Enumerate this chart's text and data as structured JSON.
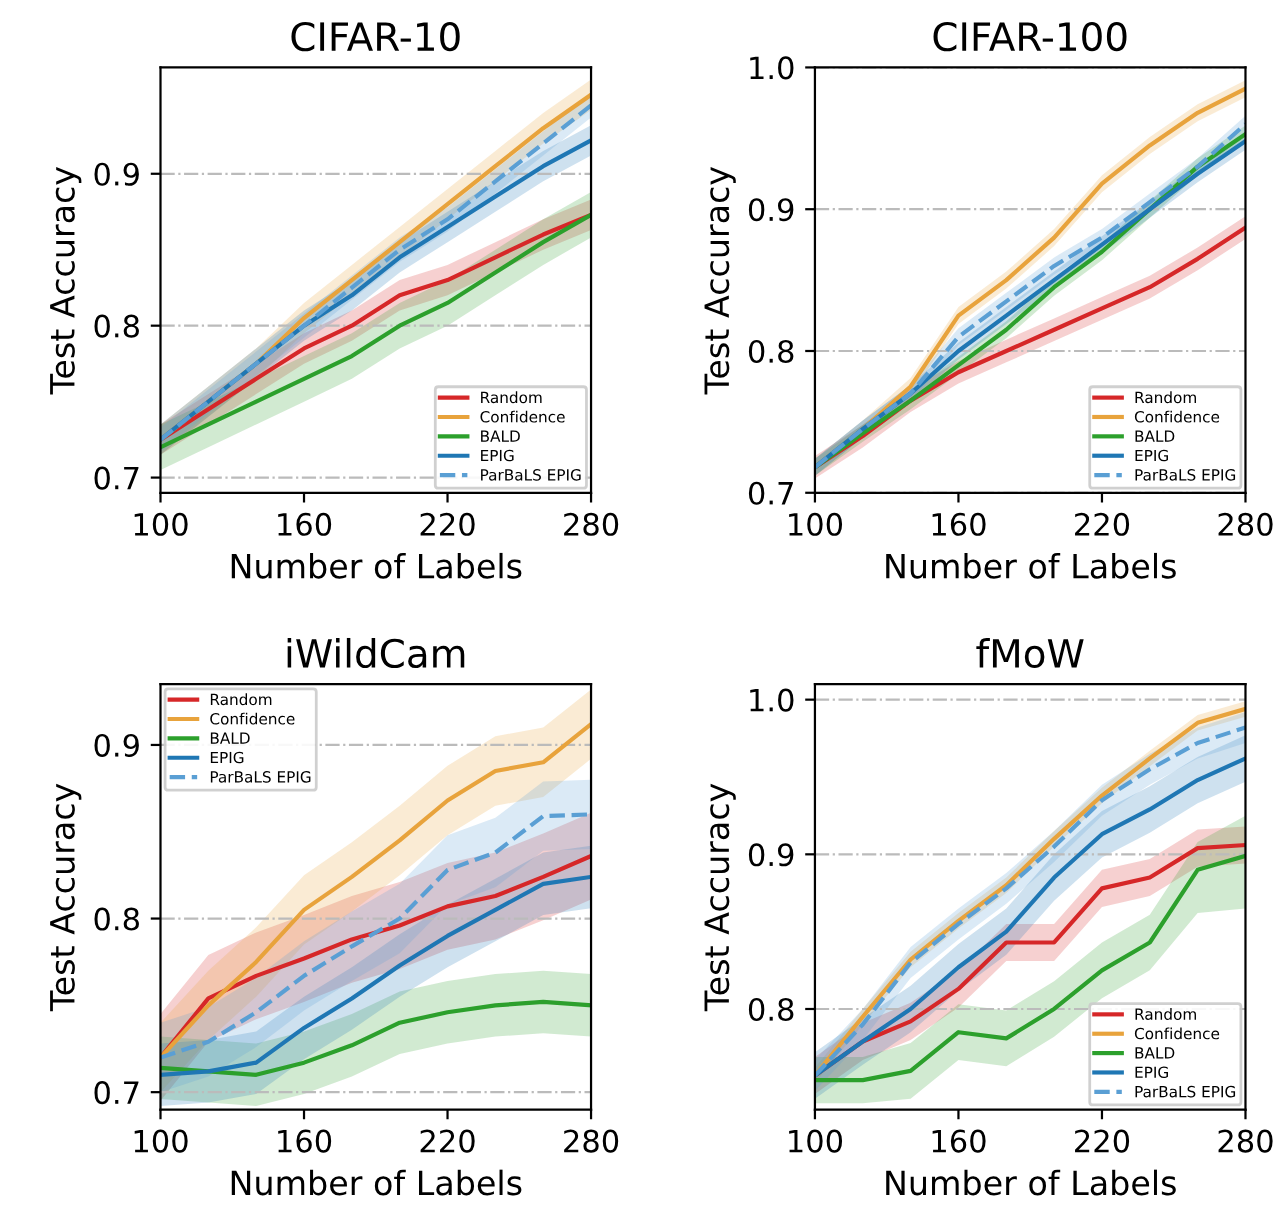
{
  "chart_data": [
    {
      "type": "line",
      "title": "CIFAR-10",
      "xlabel": "Number of Labels",
      "ylabel": "Test Accuracy",
      "x": [
        100,
        120,
        140,
        160,
        180,
        200,
        220,
        240,
        260,
        280
      ],
      "xlim": [
        100,
        280
      ],
      "xticks": [
        100,
        160,
        220,
        280
      ],
      "ylim": [
        0.69,
        0.97
      ],
      "yticks": [
        0.7,
        0.8,
        0.9
      ],
      "grid": "y",
      "legend": "lower right",
      "series": [
        {
          "name": "Random",
          "color": "#d62728",
          "line_style": "solid",
          "values": [
            0.725,
            0.745,
            0.765,
            0.785,
            0.8,
            0.82,
            0.83,
            0.845,
            0.86,
            0.873
          ],
          "lower": [
            0.715,
            0.735,
            0.755,
            0.775,
            0.79,
            0.81,
            0.82,
            0.835,
            0.85,
            0.863
          ],
          "upper": [
            0.735,
            0.755,
            0.775,
            0.795,
            0.81,
            0.83,
            0.84,
            0.855,
            0.87,
            0.883
          ]
        },
        {
          "name": "Confidence",
          "color": "#e8a33c",
          "line_style": "solid",
          "values": [
            0.725,
            0.75,
            0.775,
            0.805,
            0.83,
            0.855,
            0.88,
            0.905,
            0.93,
            0.952
          ],
          "lower": [
            0.715,
            0.74,
            0.765,
            0.795,
            0.82,
            0.845,
            0.87,
            0.895,
            0.92,
            0.942
          ],
          "upper": [
            0.735,
            0.76,
            0.785,
            0.815,
            0.84,
            0.865,
            0.89,
            0.915,
            0.94,
            0.962
          ]
        },
        {
          "name": "BALD",
          "color": "#2ca02c",
          "line_style": "solid",
          "values": [
            0.72,
            0.735,
            0.75,
            0.765,
            0.78,
            0.8,
            0.815,
            0.835,
            0.855,
            0.873
          ],
          "lower": [
            0.705,
            0.72,
            0.735,
            0.75,
            0.765,
            0.785,
            0.8,
            0.82,
            0.84,
            0.858
          ],
          "upper": [
            0.735,
            0.75,
            0.765,
            0.78,
            0.795,
            0.815,
            0.83,
            0.85,
            0.87,
            0.888
          ]
        },
        {
          "name": "EPIG",
          "color": "#1f77b4",
          "line_style": "solid",
          "values": [
            0.725,
            0.75,
            0.775,
            0.8,
            0.82,
            0.845,
            0.865,
            0.885,
            0.905,
            0.922
          ],
          "lower": [
            0.715,
            0.74,
            0.765,
            0.79,
            0.81,
            0.835,
            0.855,
            0.875,
            0.895,
            0.912
          ],
          "upper": [
            0.735,
            0.76,
            0.785,
            0.81,
            0.83,
            0.855,
            0.875,
            0.895,
            0.915,
            0.932
          ]
        },
        {
          "name": "ParBaLS EPIG",
          "color": "#5a9fd4",
          "line_style": "dashed",
          "values": [
            0.725,
            0.75,
            0.775,
            0.8,
            0.825,
            0.85,
            0.87,
            0.895,
            0.92,
            0.945
          ],
          "lower": [
            0.717,
            0.742,
            0.767,
            0.792,
            0.817,
            0.842,
            0.862,
            0.887,
            0.912,
            0.937
          ],
          "upper": [
            0.733,
            0.758,
            0.783,
            0.808,
            0.833,
            0.858,
            0.878,
            0.903,
            0.928,
            0.953
          ]
        }
      ]
    },
    {
      "type": "line",
      "title": "CIFAR-100",
      "xlabel": "Number of Labels",
      "ylabel": "Test Accuracy",
      "x": [
        100,
        120,
        140,
        160,
        180,
        200,
        220,
        240,
        260,
        280
      ],
      "xlim": [
        100,
        280
      ],
      "xticks": [
        100,
        160,
        220,
        280
      ],
      "ylim": [
        0.7,
        1.0
      ],
      "yticks": [
        0.7,
        0.8,
        0.9,
        {
          "value": 1.0,
          "label": "1.0"
        }
      ],
      "grid": "y",
      "legend": "lower right",
      "series": [
        {
          "name": "Random",
          "color": "#d62728",
          "line_style": "solid",
          "values": [
            0.718,
            0.74,
            0.765,
            0.785,
            0.8,
            0.815,
            0.83,
            0.845,
            0.865,
            0.887
          ],
          "lower": [
            0.71,
            0.732,
            0.757,
            0.777,
            0.792,
            0.807,
            0.822,
            0.837,
            0.857,
            0.879
          ],
          "upper": [
            0.726,
            0.748,
            0.773,
            0.793,
            0.808,
            0.823,
            0.838,
            0.853,
            0.873,
            0.895
          ]
        },
        {
          "name": "Confidence",
          "color": "#e8a33c",
          "line_style": "solid",
          "values": [
            0.718,
            0.745,
            0.775,
            0.825,
            0.85,
            0.88,
            0.918,
            0.945,
            0.968,
            0.985
          ],
          "lower": [
            0.712,
            0.739,
            0.769,
            0.819,
            0.844,
            0.874,
            0.912,
            0.939,
            0.962,
            0.979
          ],
          "upper": [
            0.724,
            0.751,
            0.781,
            0.831,
            0.856,
            0.886,
            0.924,
            0.951,
            0.974,
            0.991
          ]
        },
        {
          "name": "BALD",
          "color": "#2ca02c",
          "line_style": "solid",
          "values": [
            0.718,
            0.742,
            0.765,
            0.79,
            0.815,
            0.845,
            0.87,
            0.9,
            0.93,
            0.953
          ],
          "lower": [
            0.712,
            0.736,
            0.759,
            0.784,
            0.809,
            0.839,
            0.864,
            0.894,
            0.924,
            0.947
          ],
          "upper": [
            0.724,
            0.748,
            0.771,
            0.796,
            0.821,
            0.851,
            0.876,
            0.906,
            0.936,
            0.959
          ]
        },
        {
          "name": "EPIG",
          "color": "#1f77b4",
          "line_style": "solid",
          "values": [
            0.718,
            0.745,
            0.77,
            0.8,
            0.825,
            0.85,
            0.875,
            0.9,
            0.925,
            0.948
          ],
          "lower": [
            0.712,
            0.739,
            0.764,
            0.794,
            0.819,
            0.844,
            0.869,
            0.894,
            0.919,
            0.942
          ],
          "upper": [
            0.724,
            0.751,
            0.776,
            0.806,
            0.831,
            0.856,
            0.881,
            0.906,
            0.931,
            0.954
          ]
        },
        {
          "name": "ParBaLS EPIG",
          "color": "#5a9fd4",
          "line_style": "dashed",
          "values": [
            0.718,
            0.745,
            0.77,
            0.81,
            0.835,
            0.86,
            0.88,
            0.905,
            0.93,
            0.96
          ],
          "lower": [
            0.712,
            0.739,
            0.764,
            0.804,
            0.829,
            0.854,
            0.874,
            0.899,
            0.924,
            0.954
          ],
          "upper": [
            0.724,
            0.751,
            0.776,
            0.816,
            0.841,
            0.866,
            0.886,
            0.911,
            0.936,
            0.966
          ]
        }
      ]
    },
    {
      "type": "line",
      "title": "iWildCam",
      "xlabel": "Number of Labels",
      "ylabel": "Test Accuracy",
      "x": [
        100,
        120,
        140,
        160,
        180,
        200,
        220,
        240,
        260,
        280
      ],
      "xlim": [
        100,
        280
      ],
      "xticks": [
        100,
        160,
        220,
        280
      ],
      "ylim": [
        0.69,
        0.935
      ],
      "yticks": [
        0.7,
        0.8,
        0.9
      ],
      "grid": "y",
      "legend": "upper left",
      "series": [
        {
          "name": "Random",
          "color": "#d62728",
          "line_style": "solid",
          "values": [
            0.72,
            0.754,
            0.767,
            0.777,
            0.788,
            0.796,
            0.807,
            0.813,
            0.824,
            0.836
          ],
          "lower": [
            0.695,
            0.729,
            0.742,
            0.752,
            0.763,
            0.771,
            0.782,
            0.788,
            0.799,
            0.811
          ],
          "upper": [
            0.745,
            0.779,
            0.792,
            0.802,
            0.813,
            0.821,
            0.832,
            0.838,
            0.849,
            0.861
          ]
        },
        {
          "name": "Confidence",
          "color": "#e8a33c",
          "line_style": "solid",
          "values": [
            0.72,
            0.75,
            0.775,
            0.805,
            0.824,
            0.845,
            0.868,
            0.885,
            0.89,
            0.912
          ],
          "lower": [
            0.7,
            0.73,
            0.755,
            0.785,
            0.804,
            0.825,
            0.848,
            0.865,
            0.87,
            0.892
          ],
          "upper": [
            0.74,
            0.77,
            0.795,
            0.825,
            0.844,
            0.865,
            0.888,
            0.905,
            0.91,
            0.932
          ]
        },
        {
          "name": "BALD",
          "color": "#2ca02c",
          "line_style": "solid",
          "values": [
            0.714,
            0.712,
            0.71,
            0.717,
            0.727,
            0.74,
            0.746,
            0.75,
            0.752,
            0.75
          ],
          "lower": [
            0.696,
            0.694,
            0.692,
            0.699,
            0.709,
            0.722,
            0.728,
            0.732,
            0.734,
            0.732
          ],
          "upper": [
            0.732,
            0.73,
            0.728,
            0.735,
            0.745,
            0.758,
            0.764,
            0.768,
            0.77,
            0.768
          ]
        },
        {
          "name": "EPIG",
          "color": "#1f77b4",
          "line_style": "solid",
          "values": [
            0.71,
            0.712,
            0.717,
            0.737,
            0.754,
            0.773,
            0.79,
            0.805,
            0.82,
            0.824
          ],
          "lower": [
            0.692,
            0.694,
            0.699,
            0.719,
            0.736,
            0.755,
            0.772,
            0.787,
            0.802,
            0.806
          ],
          "upper": [
            0.728,
            0.73,
            0.735,
            0.755,
            0.772,
            0.791,
            0.808,
            0.823,
            0.838,
            0.842
          ]
        },
        {
          "name": "ParBaLS EPIG",
          "color": "#5a9fd4",
          "line_style": "dashed",
          "values": [
            0.72,
            0.729,
            0.746,
            0.767,
            0.784,
            0.8,
            0.828,
            0.838,
            0.859,
            0.86
          ],
          "lower": [
            0.7,
            0.709,
            0.726,
            0.747,
            0.764,
            0.78,
            0.808,
            0.818,
            0.839,
            0.84
          ],
          "upper": [
            0.74,
            0.749,
            0.766,
            0.787,
            0.804,
            0.82,
            0.848,
            0.858,
            0.879,
            0.88
          ]
        }
      ]
    },
    {
      "type": "line",
      "title": "fMoW",
      "xlabel": "Number of Labels",
      "ylabel": "Test Accuracy",
      "x": [
        100,
        120,
        140,
        160,
        180,
        200,
        220,
        240,
        260,
        280
      ],
      "xlim": [
        100,
        280
      ],
      "xticks": [
        100,
        160,
        220,
        280
      ],
      "ylim": [
        0.735,
        1.01
      ],
      "yticks": [
        0.8,
        0.9,
        {
          "value": 1.0,
          "label": "1.0"
        }
      ],
      "grid": "y",
      "legend": "lower right",
      "series": [
        {
          "name": "Random",
          "color": "#d62728",
          "line_style": "solid",
          "values": [
            0.757,
            0.779,
            0.792,
            0.813,
            0.843,
            0.843,
            0.878,
            0.885,
            0.904,
            0.906
          ],
          "lower": [
            0.745,
            0.767,
            0.78,
            0.801,
            0.831,
            0.831,
            0.866,
            0.873,
            0.892,
            0.894
          ],
          "upper": [
            0.769,
            0.791,
            0.804,
            0.825,
            0.855,
            0.855,
            0.89,
            0.897,
            0.916,
            0.918
          ]
        },
        {
          "name": "Confidence",
          "color": "#e8a33c",
          "line_style": "solid",
          "values": [
            0.757,
            0.795,
            0.832,
            0.857,
            0.88,
            0.91,
            0.938,
            0.962,
            0.985,
            0.994
          ],
          "lower": [
            0.752,
            0.79,
            0.827,
            0.852,
            0.875,
            0.905,
            0.933,
            0.957,
            0.98,
            0.989
          ],
          "upper": [
            0.762,
            0.8,
            0.837,
            0.862,
            0.885,
            0.915,
            0.943,
            0.967,
            0.99,
            0.999
          ]
        },
        {
          "name": "BALD",
          "color": "#2ca02c",
          "line_style": "solid",
          "values": [
            0.754,
            0.754,
            0.76,
            0.785,
            0.781,
            0.8,
            0.825,
            0.843,
            0.89,
            0.899
          ],
          "lower": [
            0.739,
            0.739,
            0.742,
            0.767,
            0.763,
            0.782,
            0.807,
            0.825,
            0.862,
            0.865
          ],
          "upper": [
            0.769,
            0.769,
            0.778,
            0.803,
            0.799,
            0.818,
            0.843,
            0.861,
            0.908,
            0.925
          ]
        },
        {
          "name": "EPIG",
          "color": "#1f77b4",
          "line_style": "solid",
          "values": [
            0.757,
            0.779,
            0.8,
            0.827,
            0.85,
            0.885,
            0.913,
            0.929,
            0.948,
            0.962
          ],
          "lower": [
            0.742,
            0.764,
            0.785,
            0.812,
            0.835,
            0.87,
            0.898,
            0.914,
            0.933,
            0.947
          ],
          "upper": [
            0.772,
            0.794,
            0.815,
            0.842,
            0.865,
            0.9,
            0.928,
            0.944,
            0.963,
            0.977
          ]
        },
        {
          "name": "ParBaLS EPIG",
          "color": "#5a9fd4",
          "line_style": "dashed",
          "values": [
            0.757,
            0.79,
            0.83,
            0.855,
            0.878,
            0.905,
            0.935,
            0.955,
            0.972,
            0.982
          ],
          "lower": [
            0.747,
            0.78,
            0.82,
            0.845,
            0.868,
            0.895,
            0.925,
            0.945,
            0.962,
            0.972
          ],
          "upper": [
            0.767,
            0.8,
            0.84,
            0.865,
            0.888,
            0.915,
            0.945,
            0.965,
            0.982,
            0.992
          ]
        }
      ]
    }
  ]
}
